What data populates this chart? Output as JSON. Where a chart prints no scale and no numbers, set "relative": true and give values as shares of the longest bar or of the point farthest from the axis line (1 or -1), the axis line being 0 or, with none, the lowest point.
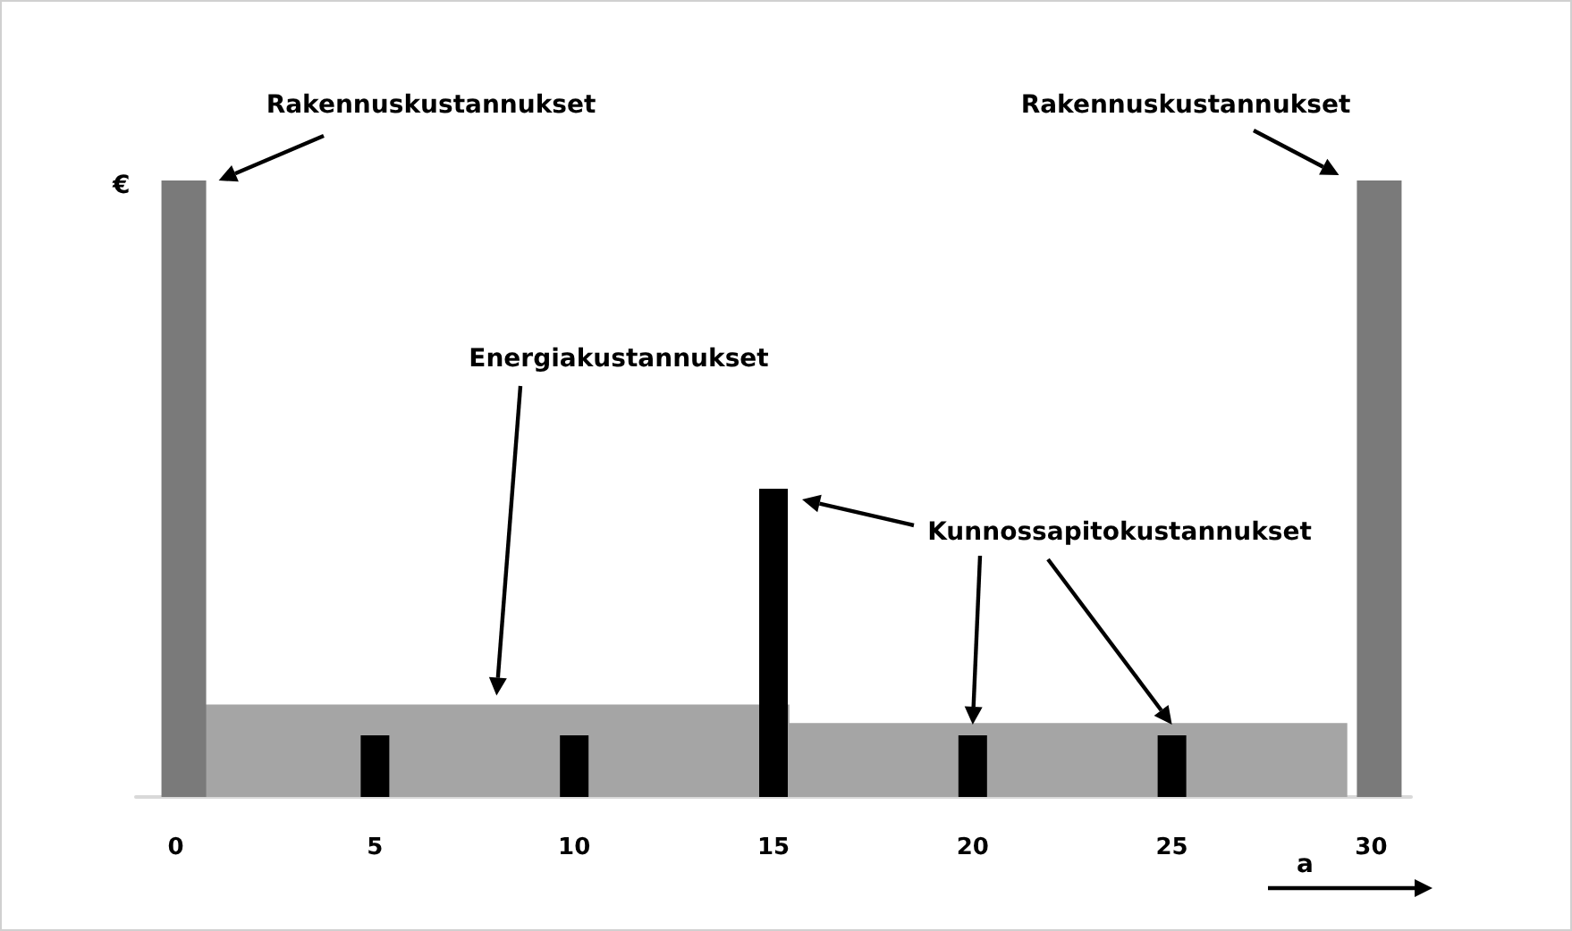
{
  "chart_data": {
    "type": "bar",
    "relative": true,
    "xlabel": "a",
    "ylabel": "€",
    "xlim": [
      -1,
      31
    ],
    "xticks": [
      0,
      5,
      10,
      15,
      20,
      25,
      30
    ],
    "grid": false,
    "series": [
      {
        "type": "area",
        "color": "#a5a5a5",
        "x": [
          0.7,
          15.4,
          15.4,
          29.4
        ],
        "values": [
          0.15,
          0.15,
          0.12,
          0.12
        ]
      },
      {
        "color": "#7a7a7a",
        "x": [
          0,
          30
        ],
        "values": [
          1,
          1
        ]
      },
      {
        "color": "#000000",
        "x": [
          5,
          10,
          15,
          20,
          25
        ],
        "values": [
          0.1,
          0.1,
          0.5,
          0.1,
          0.1
        ]
      }
    ],
    "annotations": [
      "Rakennuskustannukset",
      "Energiakustannukset",
      "Kunnossapitokustannukset",
      "Rakennuskustannukset"
    ]
  }
}
